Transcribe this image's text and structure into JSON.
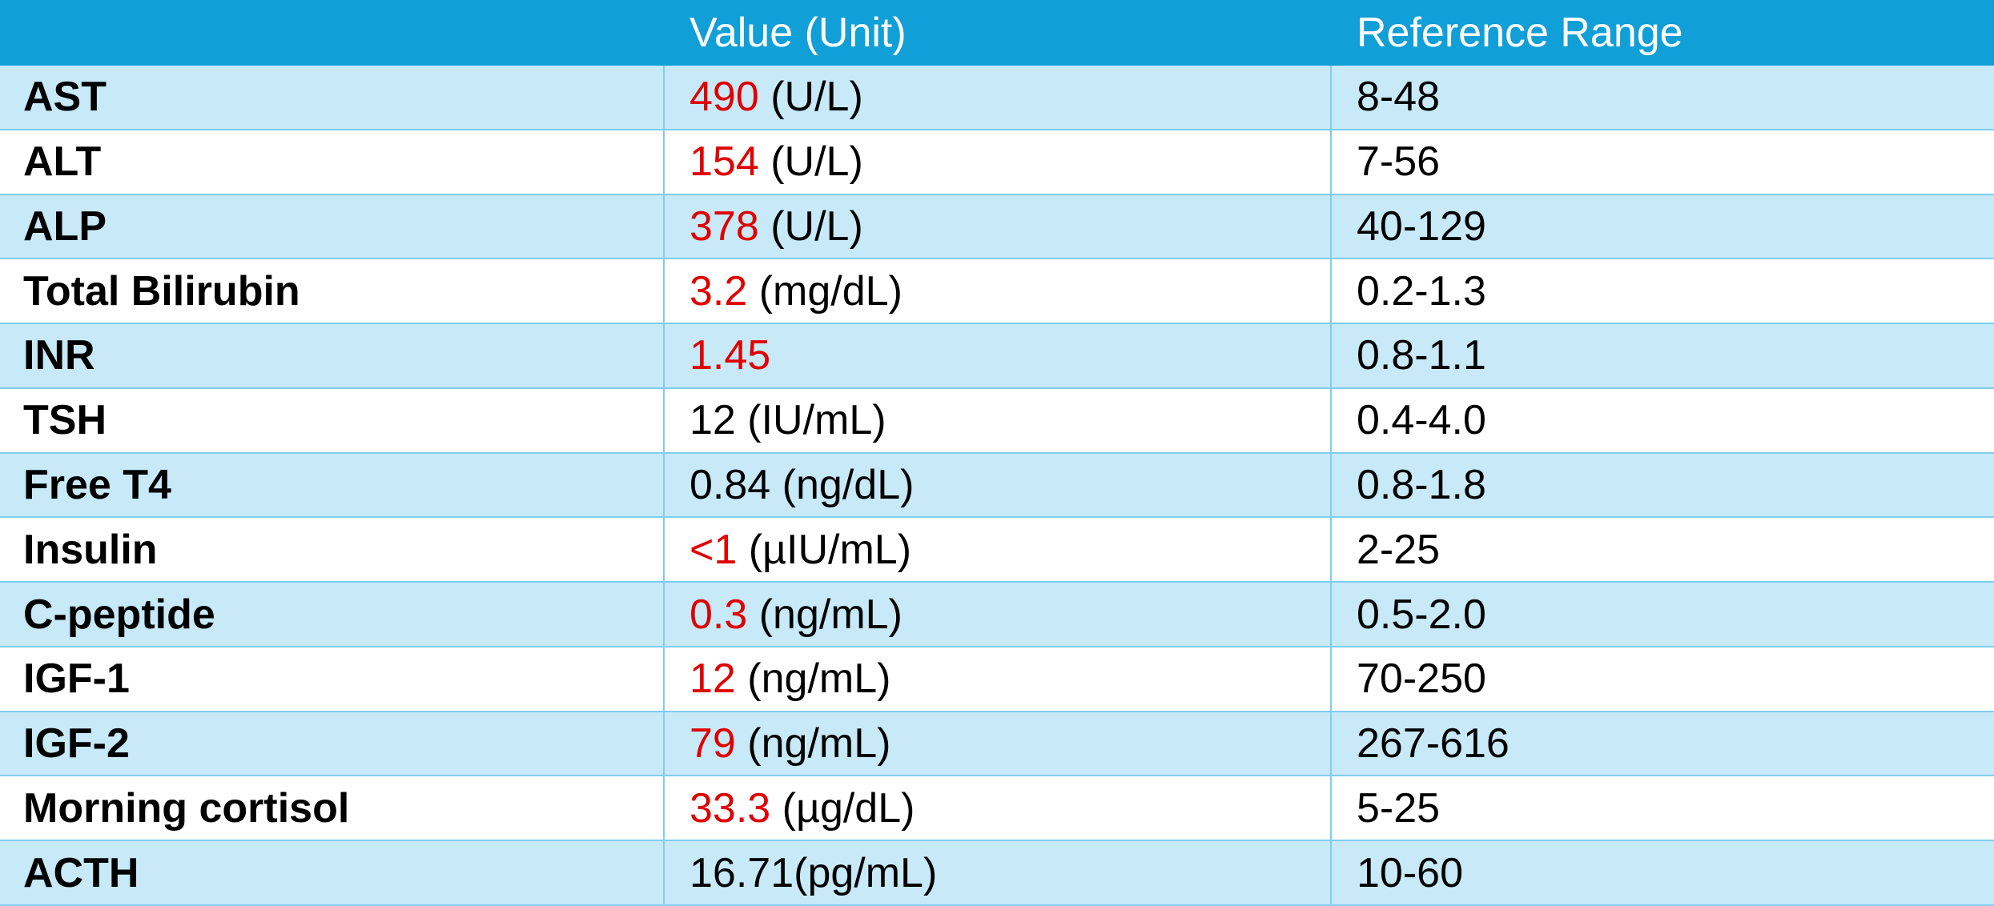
{
  "table": {
    "header": {
      "value": "Value (Unit)",
      "range": "Reference Range"
    },
    "rows": [
      {
        "test": "AST",
        "value": "490",
        "unit": " (U/L)",
        "range": "8-48",
        "flagged": true
      },
      {
        "test": "ALT",
        "value": "154",
        "unit": " (U/L)",
        "range": "7-56",
        "flagged": true
      },
      {
        "test": "ALP",
        "value": "378",
        "unit": " (U/L)",
        "range": "40-129",
        "flagged": true
      },
      {
        "test": "Total Bilirubin",
        "value": "3.2",
        "unit": " (mg/dL)",
        "range": "0.2-1.3",
        "flagged": true
      },
      {
        "test": "INR",
        "value": "1.45",
        "range": "0.8-1.1",
        "flagged": true
      },
      {
        "test": "TSH",
        "value": "12",
        "unit": " (IU/mL)",
        "range": "0.4-4.0",
        "flagged": false
      },
      {
        "test": "Free T4",
        "value": "0.84",
        "unit": " (ng/dL)",
        "range": "0.8-1.8",
        "flagged": false
      },
      {
        "test": "Insulin",
        "value": "<1",
        "unit": " (µIU/mL)",
        "range": "2-25",
        "flagged": true
      },
      {
        "test": "C-peptide",
        "value": "0.3",
        "unit": " (ng/mL)",
        "range": "0.5-2.0",
        "flagged": true
      },
      {
        "test": "IGF-1",
        "value": "12",
        "unit": " (ng/mL)",
        "range": "70-250",
        "flagged": true
      },
      {
        "test": "IGF-2",
        "value": "79",
        "unit": " (ng/mL)",
        "range": "267-616",
        "flagged": true
      },
      {
        "test": "Morning cortisol",
        "value": "33.3",
        "unit": " (µg/dL)",
        "range": "5-25",
        "flagged": true
      },
      {
        "test": "ACTH",
        "value": "16.71",
        "unit": "(pg/mL)",
        "range": "10-60",
        "flagged": false
      }
    ]
  }
}
